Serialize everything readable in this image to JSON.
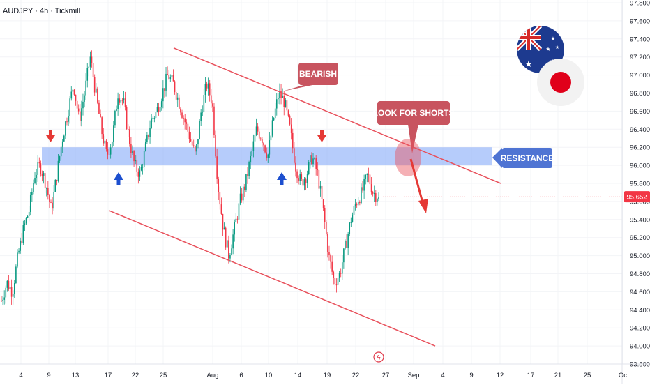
{
  "header": {
    "symbol_line": "AUDJPY · 4h · Tickmill"
  },
  "colors": {
    "up": "#089981",
    "down": "#f23645",
    "channel": "#e8505b",
    "zone": "#7aa2f7",
    "callout": "#c8545f",
    "resistance_label": "#4f74d3",
    "blue_arrow": "#1c4fcf",
    "red_arrow": "#e53935",
    "price_badge": "#f23645"
  },
  "annotations": {
    "bearish": "BEARISH",
    "look_for_shorts": "LOOK FOR SHORTS",
    "resistance": "RESISTANCE"
  },
  "flags": [
    "australia-flag-icon",
    "japan-flag-icon"
  ],
  "chart_data": {
    "type": "candlestick",
    "title": "AUDJPY · 4h · Tickmill",
    "last_price": "95.652",
    "ylim": [
      93.8,
      97.8
    ],
    "y_ticks": [
      "97.800",
      "97.600",
      "97.400",
      "97.200",
      "97.000",
      "96.800",
      "96.600",
      "96.400",
      "96.200",
      "96.000",
      "95.800",
      "95.600",
      "95.400",
      "95.200",
      "95.000",
      "94.800",
      "94.600",
      "94.400",
      "94.200",
      "94.000",
      "93.800"
    ],
    "x_ticks": [
      "4",
      "9",
      "13",
      "17",
      "22",
      "25",
      "Aug",
      "6",
      "10",
      "14",
      "19",
      "22",
      "27",
      "Sep",
      "4",
      "9",
      "12",
      "17",
      "21",
      "25",
      "Oc"
    ],
    "resistance_zone": [
      96.0,
      96.2
    ],
    "channel_upper": [
      {
        "date": "Jul 26",
        "y": 97.3
      },
      {
        "date": "Sep 11",
        "y": 95.8
      }
    ],
    "channel_lower": [
      {
        "date": "Jul 16",
        "y": 95.5
      },
      {
        "date": "Sep 2",
        "y": 94.0
      }
    ],
    "approx_closes": [
      94.5,
      94.7,
      94.6,
      95.0,
      95.3,
      95.5,
      95.9,
      96.0,
      95.8,
      95.5,
      95.9,
      96.3,
      96.6,
      96.9,
      96.5,
      96.8,
      97.2,
      96.8,
      96.4,
      96.1,
      96.3,
      96.8,
      96.7,
      96.3,
      96.0,
      95.9,
      96.2,
      96.5,
      96.6,
      96.8,
      97.0,
      96.9,
      96.7,
      96.5,
      96.3,
      96.1,
      96.6,
      96.9,
      96.7,
      95.8,
      95.3,
      95.0,
      95.3,
      95.6,
      95.8,
      96.1,
      96.4,
      96.3,
      96.1,
      96.5,
      96.8,
      96.7,
      96.4,
      96.0,
      95.8,
      95.9,
      96.1,
      95.9,
      95.5,
      95.0,
      94.7,
      94.8,
      95.1,
      95.4,
      95.6,
      95.7,
      95.9,
      95.7,
      95.65
    ]
  }
}
